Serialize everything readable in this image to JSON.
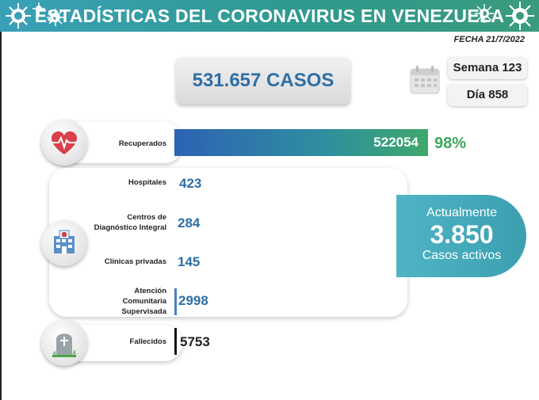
{
  "header": {
    "title": "ESTADÍSTICAS DEL CORONAVIRUS EN VENEZUELA"
  },
  "fecha": "FECHA 21/7/2022",
  "total_casos": "531.657 CASOS",
  "semana": "Semana 123",
  "dia": "Día 858",
  "recuperados": {
    "label": "Recuperados",
    "value": "522054",
    "percent": "98%"
  },
  "hospitalizados": [
    {
      "label": "Hospitales",
      "value": "423"
    },
    {
      "label": "Centros de Diagnóstico Integral",
      "value": "284"
    },
    {
      "label": "Clínicas privadas",
      "value": "145"
    },
    {
      "label": "Atención Comunitaria Supervisada",
      "value": "2998"
    }
  ],
  "activos": {
    "line1": "Actualmente",
    "number": "3.850",
    "line2": "Casos activos"
  },
  "fallecidos": {
    "label": "Fallecidos",
    "value": "5753"
  },
  "colors": {
    "accent_blue": "#2e6fa5",
    "accent_green": "#3aa85a",
    "teal": "#4fb5c4"
  },
  "icons": [
    "virus-icon",
    "calendar-icon",
    "heart-pulse-icon",
    "hospital-icon",
    "tombstone-icon"
  ]
}
